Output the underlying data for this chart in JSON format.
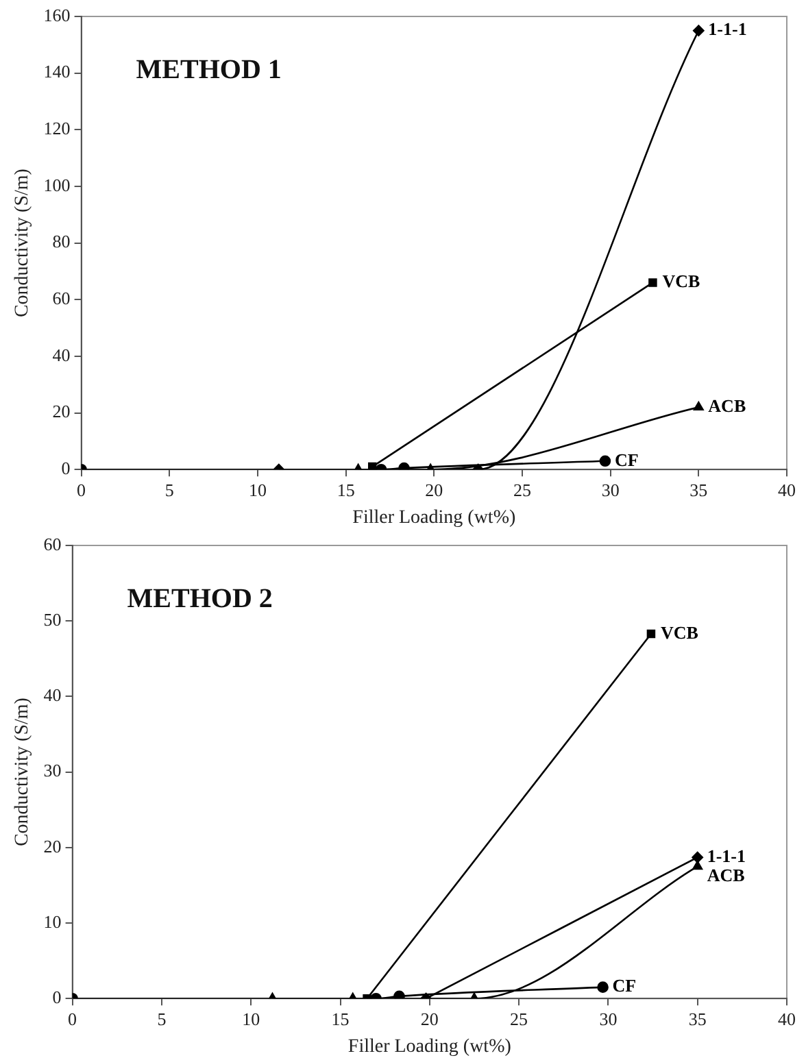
{
  "chart_data": [
    {
      "type": "line",
      "title": "METHOD 1",
      "xlabel": "Filler Loading (wt%)",
      "ylabel": "Conductivity (S/m)",
      "xlim": [
        0,
        40
      ],
      "xticks": [
        0,
        5,
        10,
        15,
        20,
        25,
        30,
        35,
        40
      ],
      "ylim": [
        0,
        160
      ],
      "yticks": [
        0,
        20,
        40,
        60,
        80,
        100,
        120,
        140,
        160
      ],
      "grid": false,
      "legend": false,
      "series": [
        {
          "name": "1-1-1",
          "color": "#000000",
          "marker": "diamond",
          "x": [
            11.2,
            22.5,
            35
          ],
          "values": [
            0,
            0,
            155
          ]
        },
        {
          "name": "VCB",
          "color": "#000000",
          "marker": "square",
          "x": [
            16.5,
            32.4
          ],
          "values": [
            1,
            66
          ]
        },
        {
          "name": "ACB",
          "color": "#000000",
          "marker": "triangle",
          "x": [
            15.7,
            19.8,
            35
          ],
          "values": [
            0,
            0,
            22
          ]
        },
        {
          "name": "CF",
          "color": "#000000",
          "marker": "circle",
          "x": [
            0,
            17,
            18.3,
            29.7
          ],
          "values": [
            0,
            0,
            0.5,
            3
          ]
        }
      ]
    },
    {
      "type": "line",
      "title": "METHOD 2",
      "xlabel": "Filler Loading (wt%)",
      "ylabel": "Conductivity (S/m)",
      "xlim": [
        0,
        40
      ],
      "xticks": [
        0,
        5,
        10,
        15,
        20,
        25,
        30,
        35,
        40
      ],
      "ylim": [
        0,
        60
      ],
      "yticks": [
        0,
        10,
        20,
        30,
        40,
        50,
        60
      ],
      "grid": false,
      "legend": false,
      "series": [
        {
          "name": "VCB",
          "color": "#000000",
          "marker": "square",
          "x": [
            16.5,
            32.4
          ],
          "values": [
            0,
            48.3
          ]
        },
        {
          "name": "1-1-1",
          "color": "#000000",
          "marker": "diamond",
          "x": [
            19.8,
            35
          ],
          "values": [
            0,
            18.7
          ]
        },
        {
          "name": "ACB",
          "color": "#000000",
          "marker": "triangle",
          "x": [
            11.2,
            15.7,
            22.5,
            35
          ],
          "values": [
            0,
            0,
            0,
            17.5
          ]
        },
        {
          "name": "CF",
          "color": "#000000",
          "marker": "circle",
          "x": [
            0,
            17,
            18.3,
            29.7
          ],
          "values": [
            0,
            0,
            0.3,
            1.5
          ]
        }
      ]
    }
  ]
}
